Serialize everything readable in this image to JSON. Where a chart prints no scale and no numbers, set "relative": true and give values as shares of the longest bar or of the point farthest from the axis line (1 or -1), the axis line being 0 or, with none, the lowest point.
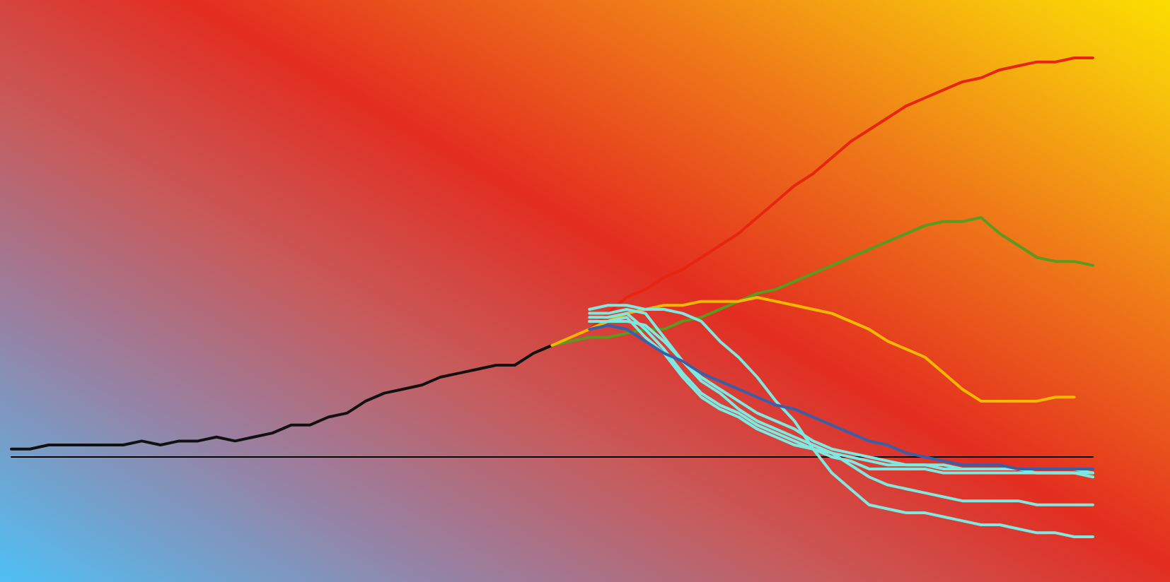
{
  "chart_data": {
    "type": "line",
    "relative": true,
    "line_style": "solid",
    "categories": [
      null,
      null,
      null,
      null,
      null,
      null,
      null,
      null,
      null,
      null,
      null,
      null,
      null,
      null,
      null,
      null,
      null,
      null,
      null,
      null,
      null,
      null,
      null,
      null,
      null,
      null,
      null,
      null,
      null,
      null,
      null,
      null,
      null,
      null,
      null,
      null,
      null,
      null,
      null,
      null,
      null,
      null,
      null,
      null,
      null,
      null,
      null,
      null,
      null,
      null,
      null,
      null,
      null,
      null,
      null,
      null,
      null,
      null,
      null
    ],
    "series": [
      {
        "color": "#111111",
        "values": [
          0.02,
          0.02,
          0.03,
          0.03,
          0.03,
          0.03,
          0.03,
          0.04,
          0.03,
          0.04,
          0.04,
          0.05,
          0.04,
          0.05,
          0.06,
          0.08,
          0.08,
          0.1,
          0.11,
          0.14,
          0.16,
          0.17,
          0.18,
          0.2,
          0.21,
          0.22,
          0.23,
          0.23,
          0.26,
          0.28,
          null,
          null,
          null,
          null,
          null,
          null,
          null,
          null,
          null,
          null,
          null,
          null,
          null,
          null,
          null,
          null,
          null,
          null,
          null,
          null,
          null,
          null,
          null,
          null,
          null,
          null,
          null,
          null,
          null
        ]
      },
      {
        "color": "#e8250f",
        "values": [
          null,
          null,
          null,
          null,
          null,
          null,
          null,
          null,
          null,
          null,
          null,
          null,
          null,
          null,
          null,
          null,
          null,
          null,
          null,
          null,
          null,
          null,
          null,
          null,
          null,
          null,
          null,
          null,
          null,
          0.28,
          0.3,
          0.32,
          0.36,
          0.4,
          0.42,
          0.45,
          0.47,
          0.5,
          0.53,
          0.56,
          0.6,
          0.64,
          0.68,
          0.71,
          0.75,
          0.79,
          0.82,
          0.85,
          0.88,
          0.9,
          0.92,
          0.94,
          0.95,
          0.97,
          0.98,
          0.99,
          0.99,
          1.0,
          1
        ]
      },
      {
        "color": "#5a9a1e",
        "values": [
          null,
          null,
          null,
          null,
          null,
          null,
          null,
          null,
          null,
          null,
          null,
          null,
          null,
          null,
          null,
          null,
          null,
          null,
          null,
          null,
          null,
          null,
          null,
          null,
          null,
          null,
          null,
          null,
          null,
          0.28,
          0.29,
          0.3,
          0.3,
          0.31,
          0.32,
          0.32,
          0.34,
          0.35,
          0.37,
          0.39,
          0.41,
          0.42,
          0.44,
          0.46,
          0.48,
          0.5,
          0.52,
          0.54,
          0.56,
          0.58,
          0.59,
          0.59,
          0.6,
          0.56,
          0.53,
          0.5,
          0.49,
          0.49,
          0.48
        ]
      },
      {
        "color": "#f5b800",
        "values": [
          null,
          null,
          null,
          null,
          null,
          null,
          null,
          null,
          null,
          null,
          null,
          null,
          null,
          null,
          null,
          null,
          null,
          null,
          null,
          null,
          null,
          null,
          null,
          null,
          null,
          null,
          null,
          null,
          null,
          0.28,
          0.3,
          0.32,
          0.34,
          0.36,
          0.37,
          0.38,
          0.38,
          0.39,
          0.39,
          0.39,
          0.4,
          0.39,
          0.38,
          0.37,
          0.36,
          0.34,
          0.32,
          0.29,
          0.27,
          0.25,
          0.21,
          0.17,
          0.14,
          0.14,
          0.14,
          0.14,
          0.15,
          0.15,
          null
        ]
      },
      {
        "color": "#3a5fa8",
        "values": [
          null,
          null,
          null,
          null,
          null,
          null,
          null,
          null,
          null,
          null,
          null,
          null,
          null,
          null,
          null,
          null,
          null,
          null,
          null,
          null,
          null,
          null,
          null,
          null,
          null,
          null,
          null,
          null,
          null,
          null,
          null,
          0.32,
          0.33,
          0.32,
          0.29,
          0.26,
          0.24,
          0.21,
          0.19,
          0.17,
          0.15,
          0.13,
          0.12,
          0.1,
          0.08,
          0.06,
          0.04,
          0.03,
          0.01,
          0,
          -0.01,
          -0.02,
          -0.02,
          -0.02,
          -0.03,
          -0.03,
          -0.03,
          -0.03,
          -0.03
        ]
      },
      {
        "color": "#7fe8e0",
        "values": [
          null,
          null,
          null,
          null,
          null,
          null,
          null,
          null,
          null,
          null,
          null,
          null,
          null,
          null,
          null,
          null,
          null,
          null,
          null,
          null,
          null,
          null,
          null,
          null,
          null,
          null,
          null,
          null,
          null,
          null,
          null,
          0.37,
          0.38,
          0.38,
          0.37,
          0.37,
          0.36,
          0.34,
          0.29,
          0.25,
          0.2,
          0.14,
          0.09,
          0.02,
          -0.04,
          -0.08,
          -0.12,
          -0.13,
          -0.14,
          -0.14,
          -0.15,
          -0.16,
          -0.17,
          -0.17,
          -0.18,
          -0.19,
          -0.19,
          -0.2,
          -0.2
        ]
      },
      {
        "color": "#7fe8e0",
        "values": [
          null,
          null,
          null,
          null,
          null,
          null,
          null,
          null,
          null,
          null,
          null,
          null,
          null,
          null,
          null,
          null,
          null,
          null,
          null,
          null,
          null,
          null,
          null,
          null,
          null,
          null,
          null,
          null,
          null,
          null,
          null,
          0.34,
          0.34,
          0.35,
          0.3,
          0.26,
          0.2,
          0.15,
          0.12,
          0.1,
          0.07,
          0.05,
          0.03,
          0.02,
          0,
          -0.01,
          -0.03,
          -0.03,
          -0.03,
          -0.03,
          -0.04,
          -0.04,
          -0.04,
          -0.04,
          -0.04,
          -0.04,
          -0.04,
          -0.04,
          -0.05
        ]
      },
      {
        "color": "#7fe8e0",
        "values": [
          null,
          null,
          null,
          null,
          null,
          null,
          null,
          null,
          null,
          null,
          null,
          null,
          null,
          null,
          null,
          null,
          null,
          null,
          null,
          null,
          null,
          null,
          null,
          null,
          null,
          null,
          null,
          null,
          null,
          null,
          null,
          0.35,
          0.35,
          0.36,
          0.32,
          0.27,
          0.21,
          0.16,
          0.13,
          0.11,
          0.08,
          0.06,
          0.04,
          0.02,
          0.01,
          0,
          -0.01,
          -0.02,
          -0.02,
          -0.02,
          -0.03,
          -0.03,
          -0.03,
          -0.03,
          -0.03,
          -0.04,
          -0.04,
          -0.04,
          -0.04
        ]
      },
      {
        "color": "#7fe8e0",
        "values": [
          null,
          null,
          null,
          null,
          null,
          null,
          null,
          null,
          null,
          null,
          null,
          null,
          null,
          null,
          null,
          null,
          null,
          null,
          null,
          null,
          null,
          null,
          null,
          null,
          null,
          null,
          null,
          null,
          null,
          null,
          null,
          0.36,
          0.36,
          0.37,
          0.36,
          0.3,
          0.24,
          0.19,
          0.16,
          0.12,
          0.09,
          0.07,
          0.05,
          0.03,
          0.01,
          -0.02,
          -0.05,
          -0.07,
          -0.08,
          -0.09,
          -0.1,
          -0.11,
          -0.11,
          -0.11,
          -0.11,
          -0.12,
          -0.12,
          -0.12,
          -0.12
        ]
      },
      {
        "color": "#7fe8e0",
        "values": [
          null,
          null,
          null,
          null,
          null,
          null,
          null,
          null,
          null,
          null,
          null,
          null,
          null,
          null,
          null,
          null,
          null,
          null,
          null,
          null,
          null,
          null,
          null,
          null,
          null,
          null,
          null,
          null,
          null,
          null,
          null,
          0.34,
          0.34,
          0.34,
          0.33,
          0.29,
          0.24,
          0.2,
          0.17,
          0.14,
          0.11,
          0.09,
          0.07,
          0.04,
          0.02,
          0.01,
          0,
          -0.01,
          -0.02,
          -0.02,
          -0.02,
          -0.03,
          -0.03,
          -0.03,
          -0.03,
          -0.03,
          -0.03,
          -0.03,
          -0.04
        ]
      }
    ]
  }
}
